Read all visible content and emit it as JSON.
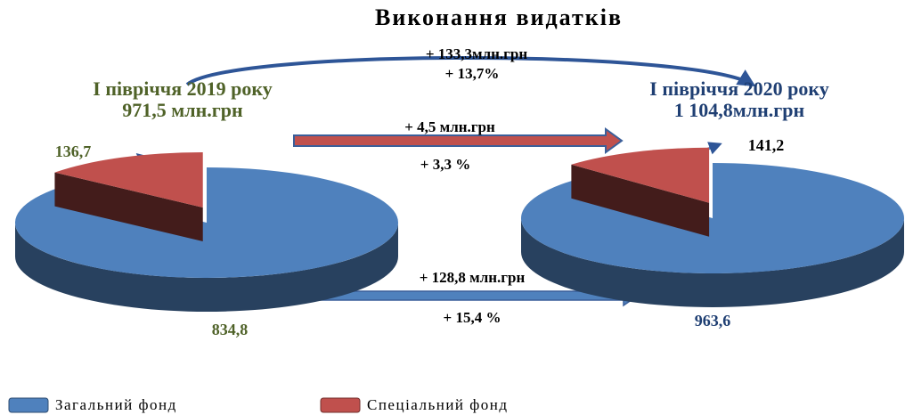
{
  "title": "Виконання видатків",
  "annotations": [
    "+ 133,3млн.грн",
    "+ 13,7%",
    "+ 4,5 млн.грн",
    "+ 3,3 %",
    "+ 128,8 млн.грн",
    "+ 15,4 %"
  ],
  "chart_data": [
    {
      "type": "pie",
      "title": "І півріччя 2019 року",
      "subtitle": "971,5 млн.грн",
      "categories": [
        "Загальний фонд",
        "Спеціальний фонд"
      ],
      "values": [
        834.8,
        136.7
      ],
      "value_labels": [
        "834,8",
        "136,7"
      ],
      "colors": [
        "#4f81bd",
        "#c0504d"
      ]
    },
    {
      "type": "pie",
      "title": "І півріччя 2020 року",
      "subtitle": "1 104,8млн.грн",
      "categories": [
        "Загальний фонд",
        "Спеціальний фонд"
      ],
      "values": [
        963.6,
        141.2
      ],
      "value_labels": [
        "963,6",
        "141,2"
      ],
      "colors": [
        "#4f81bd",
        "#c0504d"
      ]
    }
  ]
}
